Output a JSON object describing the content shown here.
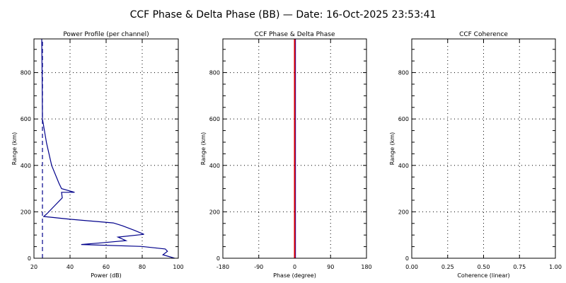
{
  "title": "CCF Phase & Delta Phase (BB) — Date: 16-Oct-2025 23:53:41",
  "colors": {
    "profile": "#00008b",
    "phase": "#dd0000",
    "delta_phase": "#0000cc",
    "axis": "#000000"
  },
  "chart_data": [
    {
      "type": "line",
      "title": "Power Profile (per channel)",
      "xlabel": "Power (dB)",
      "ylabel": "Range (km)",
      "xlim": [
        20,
        100
      ],
      "ylim": [
        0,
        945
      ],
      "xticks": [
        "20",
        "40",
        "60",
        "80",
        "100"
      ],
      "yticks": [
        "0",
        "200",
        "400",
        "600",
        "800"
      ],
      "grid": true,
      "series": [
        {
          "name": "power-profile",
          "x": [
            98,
            91.5,
            94,
            92.8,
            79.7,
            46.2,
            57,
            71,
            66.6,
            81,
            75.7,
            69,
            64,
            40,
            25.4,
            27.2,
            35.7,
            35.3,
            42.5,
            35.3,
            33.8,
            29.8,
            27,
            24.7,
            24.5,
            24.3
          ],
          "y": [
            0,
            15,
            30,
            40,
            51,
            59,
            66,
            76,
            91,
            103,
            120,
            140,
            152,
            168,
            180,
            192,
            260,
            284,
            284,
            300,
            324,
            400,
            496,
            600,
            800,
            944
          ]
        },
        {
          "name": "noise-level",
          "style": "dashed",
          "x": [
            24.7,
            24.7
          ],
          "y": [
            0,
            945
          ]
        }
      ]
    },
    {
      "type": "line",
      "title": "CCF Phase & Delta Phase",
      "xlabel": "Phase (degree)",
      "ylabel": "Range (km)",
      "xlim": [
        -180,
        180
      ],
      "ylim": [
        0,
        945
      ],
      "xticks": [
        "-180",
        "-90",
        "0",
        "90",
        "180"
      ],
      "yticks": [
        "0",
        "200",
        "400",
        "600",
        "800"
      ],
      "grid": true,
      "series": [
        {
          "name": "delta-phase",
          "x": [
            2,
            2
          ],
          "y": [
            0,
            945
          ]
        },
        {
          "name": "ccf-phase",
          "x": [
            0,
            0
          ],
          "y": [
            0,
            945
          ]
        }
      ]
    },
    {
      "type": "line",
      "title": "CCF Coherence",
      "xlabel": "Coherence (linear)",
      "ylabel": "Range (km)",
      "xlim": [
        0,
        1
      ],
      "ylim": [
        0,
        945
      ],
      "xticks": [
        "0.00",
        "0.25",
        "0.50",
        "0.75",
        "1.00"
      ],
      "yticks": [
        "0",
        "200",
        "400",
        "600",
        "800"
      ],
      "grid": true,
      "series": []
    }
  ]
}
